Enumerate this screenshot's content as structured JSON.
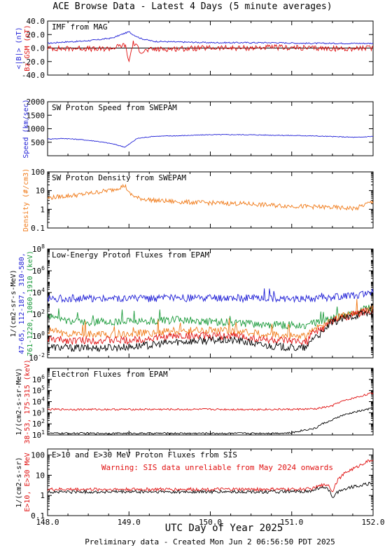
{
  "title": "ACE Browse Data - Latest 4 Days (5 minute averages)",
  "xlabel": "UTC Day of Year 2025",
  "footer": "Preliminary data - Created Mon Jun  2 06:56:50 PDT 2025",
  "x_ticks": [
    "148.0",
    "149.0",
    "150.0",
    "151.0",
    "152.0"
  ],
  "colors": {
    "blue": "#1f1fd6",
    "red": "#e01010",
    "green": "#1a9a3a",
    "orange": "#f07a18",
    "black": "#000000"
  },
  "chart_data": [
    {
      "type": "line",
      "title": "IMF from MAG",
      "ylabels": [
        "<|B|> (nT)",
        "Bz GSM (nT)"
      ],
      "ylim": [
        -40,
        40
      ],
      "yscale": "linear",
      "y_ticks": [
        "40.0",
        "20.0",
        "0.0",
        "-20.0",
        "-40.0"
      ],
      "x": [
        148.0,
        148.2,
        148.4,
        148.6,
        148.8,
        148.95,
        149.0,
        149.05,
        149.15,
        149.3,
        149.6,
        150.0,
        150.4,
        150.8,
        151.2,
        151.6,
        152.0
      ],
      "series": [
        {
          "name": "<|B|>",
          "color": "blue",
          "values": [
            7,
            9,
            10,
            12,
            15,
            22,
            24,
            20,
            14,
            10,
            9,
            8,
            8,
            8,
            7,
            7,
            7
          ]
        },
        {
          "name": "Bz GSM",
          "color": "red",
          "values": [
            0,
            -1,
            0,
            -2,
            0,
            5,
            -20,
            8,
            -5,
            -2,
            -1,
            0,
            0,
            1,
            0,
            -1,
            0
          ]
        }
      ]
    },
    {
      "type": "line",
      "title": "SW Proton Speed from SWEPAM",
      "ylabels": [
        "Speed (km/sec)"
      ],
      "ylim": [
        0,
        2000
      ],
      "yscale": "linear",
      "y_ticks": [
        "2000",
        "1500",
        "1000",
        "500"
      ],
      "x": [
        148.0,
        148.2,
        148.4,
        148.6,
        148.8,
        148.95,
        149.0,
        149.1,
        149.3,
        149.6,
        150.0,
        150.4,
        150.8,
        151.2,
        151.6,
        151.8,
        152.0
      ],
      "series": [
        {
          "name": "Speed",
          "color": "blue",
          "values": [
            620,
            640,
            600,
            540,
            440,
            320,
            420,
            640,
            720,
            740,
            780,
            780,
            760,
            740,
            700,
            680,
            720
          ]
        }
      ]
    },
    {
      "type": "line",
      "title": "SW Proton Density from SWEPAM",
      "ylabels": [
        "Density (#/cm3)"
      ],
      "ylim": [
        0.1,
        100
      ],
      "yscale": "log",
      "y_ticks": [
        "100",
        "10",
        "1",
        "0.1"
      ],
      "x": [
        148.0,
        148.2,
        148.4,
        148.6,
        148.8,
        148.95,
        149.0,
        149.1,
        149.3,
        149.6,
        150.0,
        150.4,
        150.8,
        151.2,
        151.6,
        151.8,
        152.0
      ],
      "series": [
        {
          "name": "Density",
          "color": "orange",
          "values": [
            4,
            5,
            6,
            8,
            11,
            18,
            7,
            4,
            3,
            2.5,
            2.2,
            2,
            1.6,
            1.4,
            1.2,
            1.1,
            2.5
          ]
        }
      ]
    },
    {
      "type": "line",
      "title": "Low-Energy Proton Fluxes from EPAM",
      "ylabels": [
        "1/(cm2-sr-s-MeV)",
        "47-65, 112-187, 310-580,",
        "761-1220, 1060-1910 (keV)"
      ],
      "ylim": [
        0.01,
        100000000
      ],
      "yscale": "log",
      "y_ticks": [
        "10^8",
        "10^6",
        "10^4",
        "10^2",
        "10^0",
        "10^-2"
      ],
      "x": [
        148.0,
        148.3,
        148.6,
        149.0,
        149.3,
        149.6,
        150.0,
        150.3,
        150.6,
        151.0,
        151.2,
        151.4,
        151.6,
        151.8,
        152.0
      ],
      "series": [
        {
          "name": "47-65",
          "color": "blue",
          "values": [
            3000,
            3000,
            3000,
            3000,
            3000,
            3000,
            3000,
            3000,
            3000,
            3000,
            3000,
            3000,
            4000,
            6000,
            10000
          ]
        },
        {
          "name": "112-187",
          "color": "green",
          "values": [
            60,
            20,
            20,
            20,
            25,
            30,
            20,
            18,
            10,
            10,
            10,
            20,
            60,
            150,
            500
          ]
        },
        {
          "name": "310-580",
          "color": "orange",
          "values": [
            3,
            1.5,
            1.5,
            1.5,
            2,
            3,
            3,
            3,
            1.5,
            1,
            1,
            10,
            60,
            150,
            300
          ]
        },
        {
          "name": "761-1220",
          "color": "red",
          "values": [
            0.5,
            0.4,
            0.4,
            0.4,
            0.6,
            1,
            1,
            1,
            0.5,
            0.3,
            0.3,
            5,
            40,
            100,
            250
          ]
        },
        {
          "name": "1060-1910",
          "color": "black",
          "values": [
            0.1,
            0.08,
            0.08,
            0.1,
            0.15,
            0.3,
            0.4,
            0.4,
            0.15,
            0.08,
            0.08,
            2,
            30,
            80,
            200
          ]
        }
      ]
    },
    {
      "type": "line",
      "title": "Electron Fluxes from EPAM",
      "ylabels": [
        "1/(cm2-s-sr-MeV)",
        "38-53, 175-315 (keV)"
      ],
      "ylim": [
        10,
        10000000
      ],
      "yscale": "log",
      "y_ticks": [
        "10^6",
        "10^5",
        "10^4",
        "10^3",
        "10^2",
        "10^1"
      ],
      "x": [
        148.0,
        148.5,
        149.0,
        149.5,
        150.0,
        150.5,
        151.0,
        151.3,
        151.5,
        151.7,
        151.85,
        152.0
      ],
      "series": [
        {
          "name": "38-53",
          "color": "red",
          "values": [
            2000,
            2000,
            2000,
            2000,
            2000,
            2000,
            2000,
            2200,
            4000,
            15000,
            30000,
            60000
          ]
        },
        {
          "name": "175-315",
          "color": "black",
          "values": [
            14,
            14,
            14,
            14,
            14,
            14,
            15,
            40,
            200,
            800,
            1500,
            2500
          ]
        }
      ]
    },
    {
      "type": "line",
      "title": "E>10 and E>30 MeV Proton Fluxes from SIS",
      "annotation": "Warning: SIS data unreliable from May 2024 onwards",
      "ylabels": [
        "1/(cm2-s-sr)",
        "E>10, E>30 MeV"
      ],
      "ylim": [
        0.1,
        200
      ],
      "yscale": "log",
      "y_ticks": [
        "100",
        "10",
        "1",
        "0.1"
      ],
      "x": [
        148.0,
        148.5,
        149.0,
        149.5,
        150.0,
        150.5,
        151.0,
        151.25,
        151.35,
        151.45,
        151.5,
        151.6,
        151.8,
        152.0
      ],
      "series": [
        {
          "name": "E>10",
          "color": "red",
          "values": [
            2,
            2,
            2,
            2,
            2,
            2,
            2,
            2.1,
            3,
            3.5,
            1.2,
            8,
            25,
            60
          ]
        },
        {
          "name": "E>30",
          "color": "black",
          "values": [
            1.5,
            1.5,
            1.5,
            1.5,
            1.5,
            1.5,
            1.5,
            1.6,
            2.5,
            2,
            0.8,
            1.8,
            3,
            4
          ]
        }
      ]
    }
  ]
}
